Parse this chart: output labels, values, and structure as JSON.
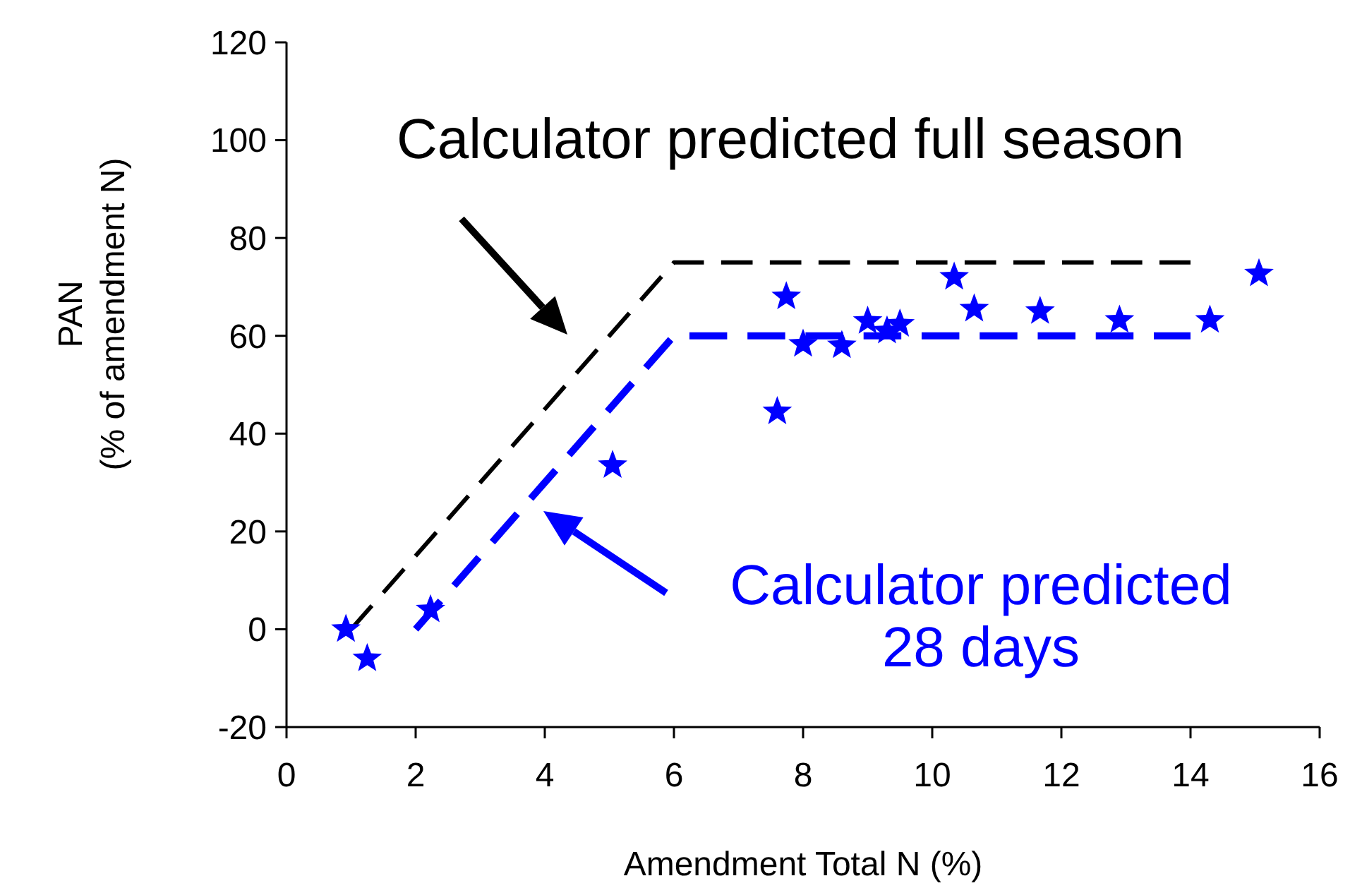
{
  "chart_data": {
    "type": "scatter",
    "xlabel": "Amendment Total N (%)",
    "ylabel": "PAN\n(% of amendment N)",
    "xlim": [
      0,
      16
    ],
    "ylim": [
      -20,
      120
    ],
    "xticks": [
      0,
      2,
      4,
      6,
      8,
      10,
      12,
      14,
      16
    ],
    "yticks": [
      -20,
      0,
      20,
      40,
      60,
      80,
      100,
      120
    ],
    "grid": false,
    "series": [
      {
        "type": "line",
        "color": "#000000",
        "x": [
          1,
          6,
          14
        ],
        "values": [
          0,
          75,
          75
        ],
        "line_style": "dashed"
      },
      {
        "type": "line",
        "color": "#0000ff",
        "x": [
          2,
          6,
          14
        ],
        "values": [
          0,
          60,
          60
        ],
        "line_style": "dashed"
      },
      {
        "color": "#0000ff",
        "marker": "star",
        "x": [
          0.92,
          1.25,
          2.23,
          5.05,
          7.6,
          7.74,
          8.0,
          8.6,
          9.0,
          9.3,
          9.5,
          10.34,
          10.65,
          11.67,
          12.9,
          14.3,
          15.06
        ],
        "values": [
          0,
          -6,
          4,
          33.5,
          44.5,
          68,
          58.3,
          58,
          63,
          61,
          62.4,
          72,
          65.5,
          65,
          63.2,
          63.2,
          72.7
        ]
      }
    ],
    "annotations": [
      "Calculator predicted full season",
      "Calculator predicted\n28 days"
    ]
  }
}
